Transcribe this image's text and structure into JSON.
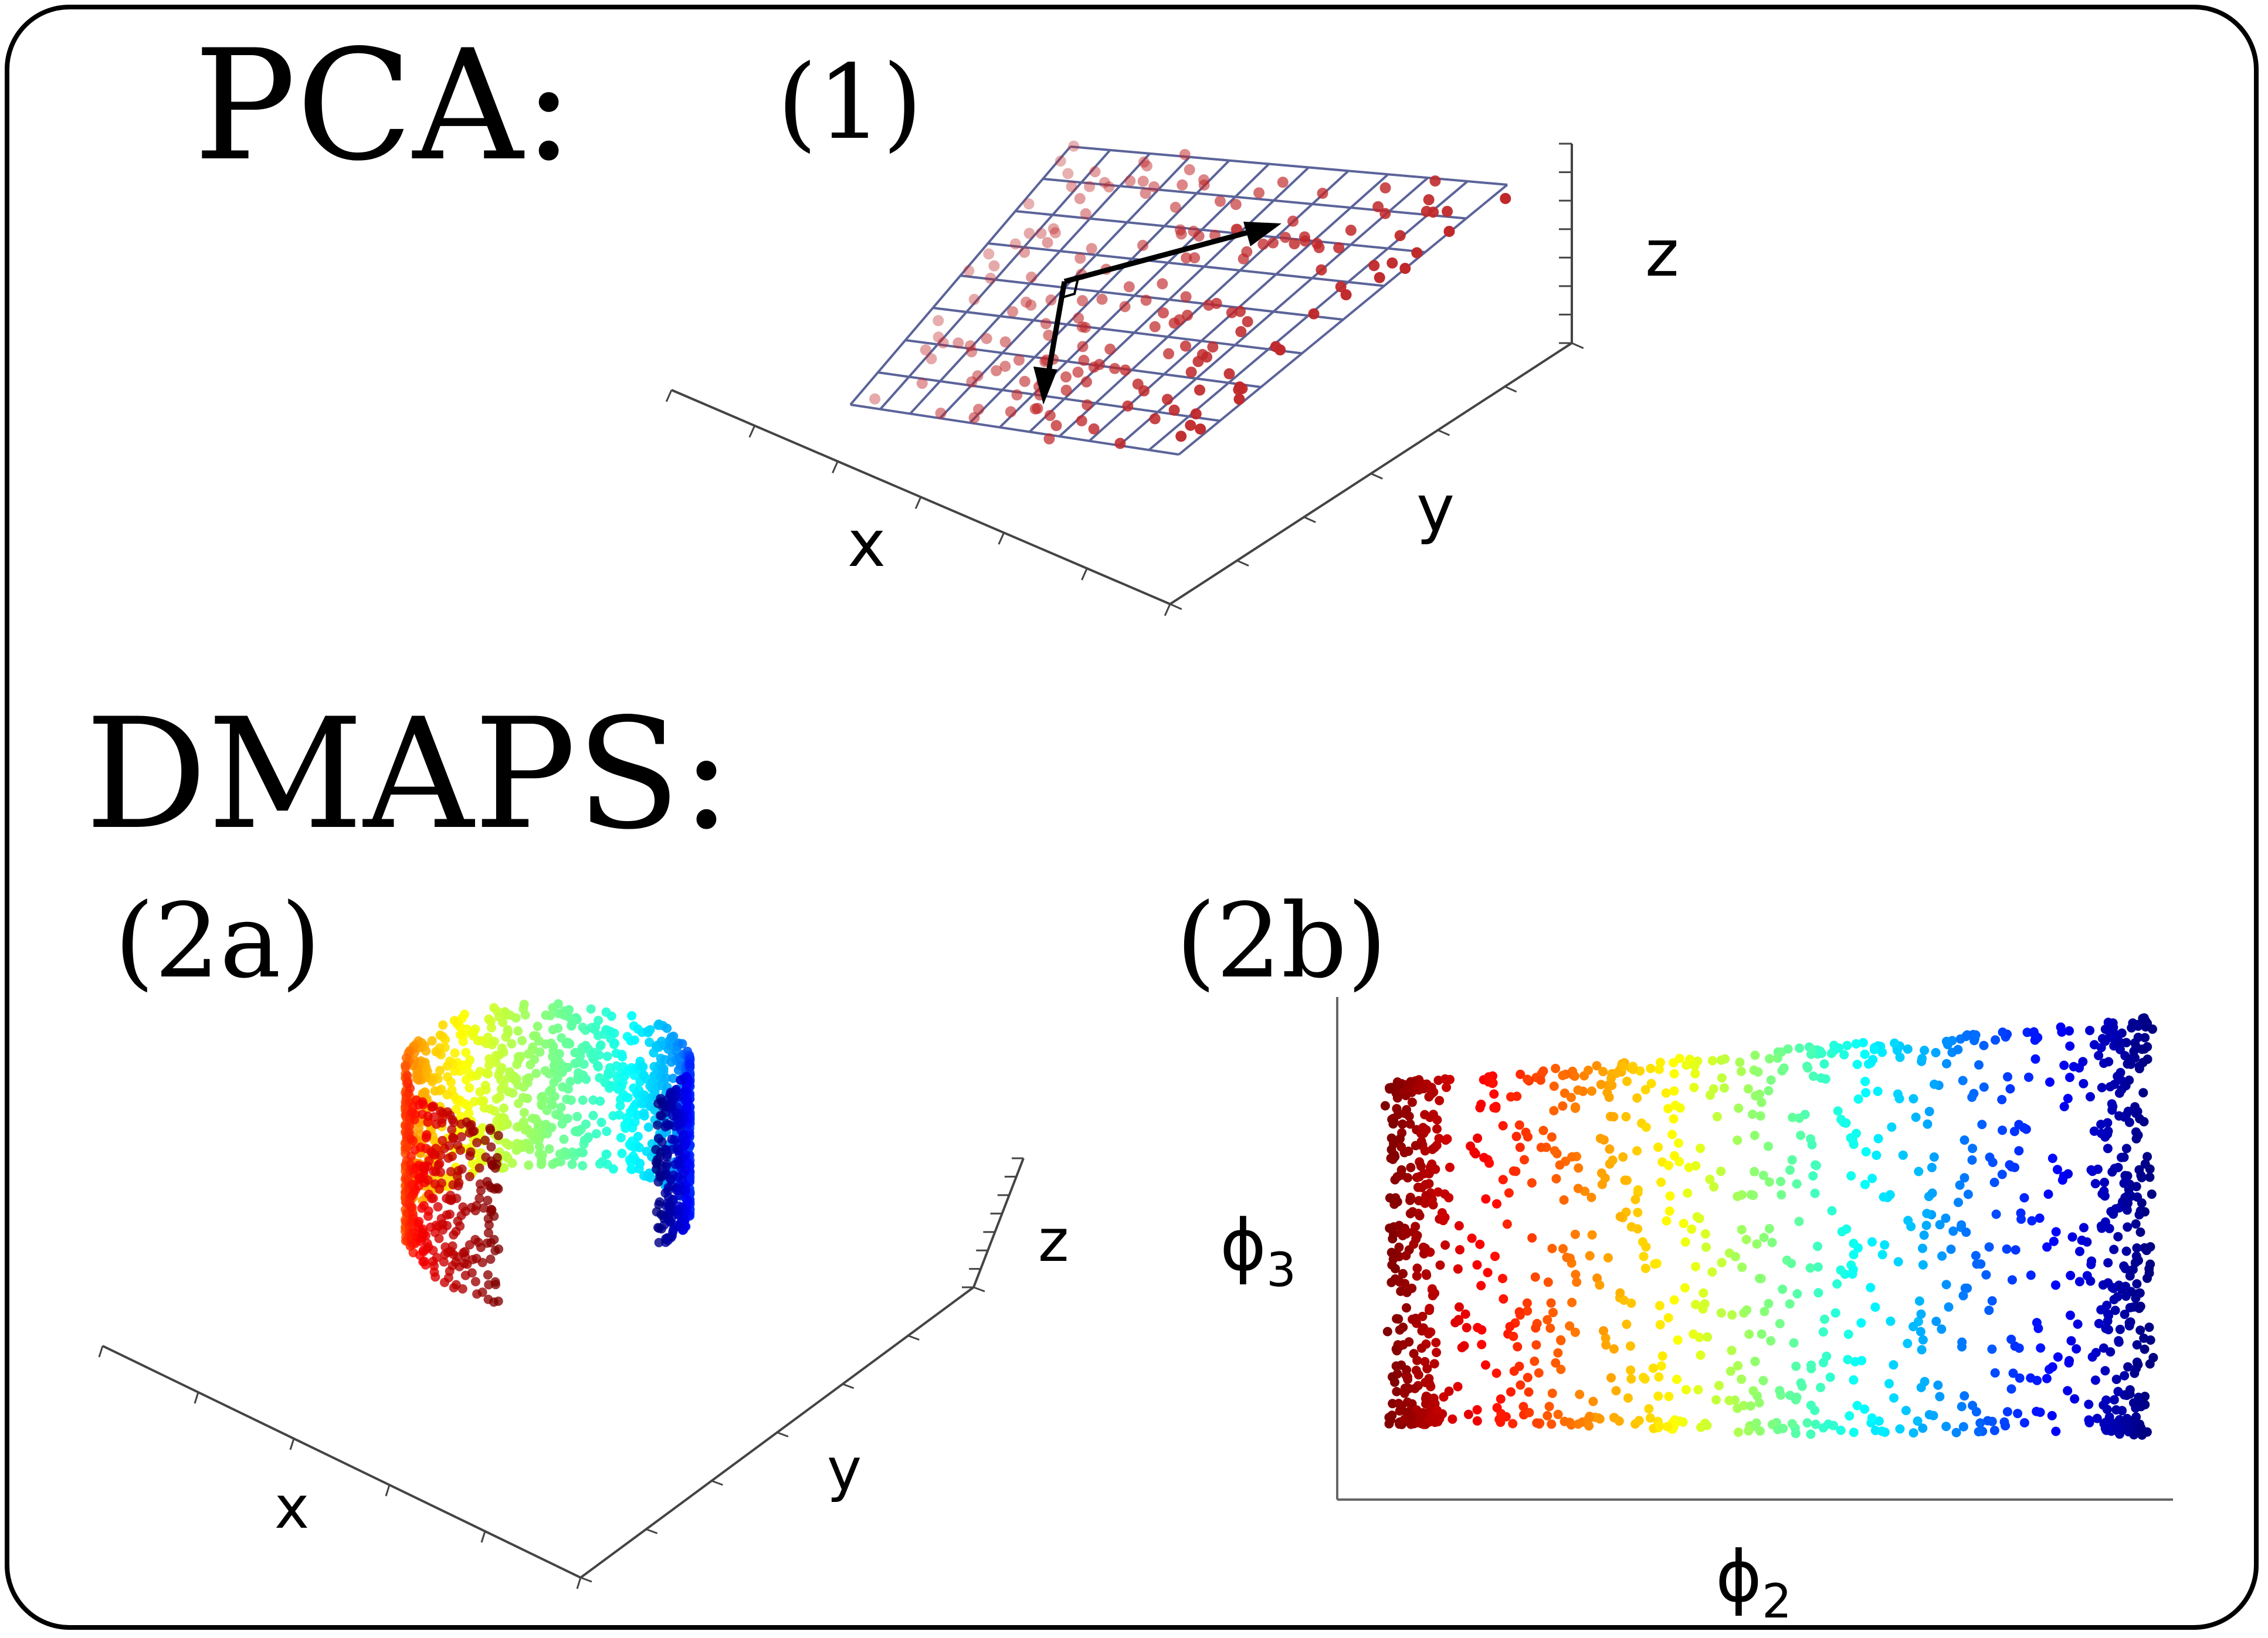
{
  "headings": {
    "pca": "PCA:",
    "dmaps": "DMAPS:"
  },
  "panels": {
    "p1": {
      "label": "(1)",
      "axes": {
        "x": "x",
        "y": "y",
        "z": "z"
      }
    },
    "p2a": {
      "label": "(2a)",
      "axes": {
        "x": "x",
        "y": "y",
        "z": "z"
      }
    },
    "p2b": {
      "label": "(2b)",
      "xlabel": "ϕ",
      "xlabel_sub": "2",
      "ylabel": "ϕ",
      "ylabel_sub": "3"
    }
  },
  "colors": {
    "pca_points": "#c0282a",
    "pca_grid": "#5b6399",
    "arrows": "#000000",
    "colormap": "jet"
  }
}
